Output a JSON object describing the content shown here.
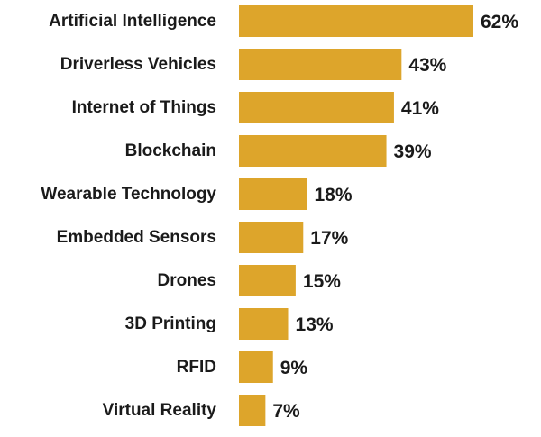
{
  "chart_data": {
    "type": "bar",
    "orientation": "horizontal",
    "title": "",
    "xlabel": "",
    "ylabel": "",
    "categories": [
      "Artificial Intelligence",
      "Driverless Vehicles",
      "Internet of Things",
      "Blockchain",
      "Wearable Technology",
      "Embedded Sensors",
      "Drones",
      "3D Printing",
      "RFID",
      "Virtual Reality"
    ],
    "values": [
      62,
      43,
      41,
      39,
      18,
      17,
      15,
      13,
      9,
      7
    ],
    "value_labels": [
      "62%",
      "43%",
      "41%",
      "39%",
      "18%",
      "17%",
      "15%",
      "13%",
      "9%",
      "7%"
    ],
    "unit": "%",
    "xlim": [
      0,
      62
    ],
    "grid": false,
    "legend": "none",
    "bar_color": "#DDA52B"
  }
}
